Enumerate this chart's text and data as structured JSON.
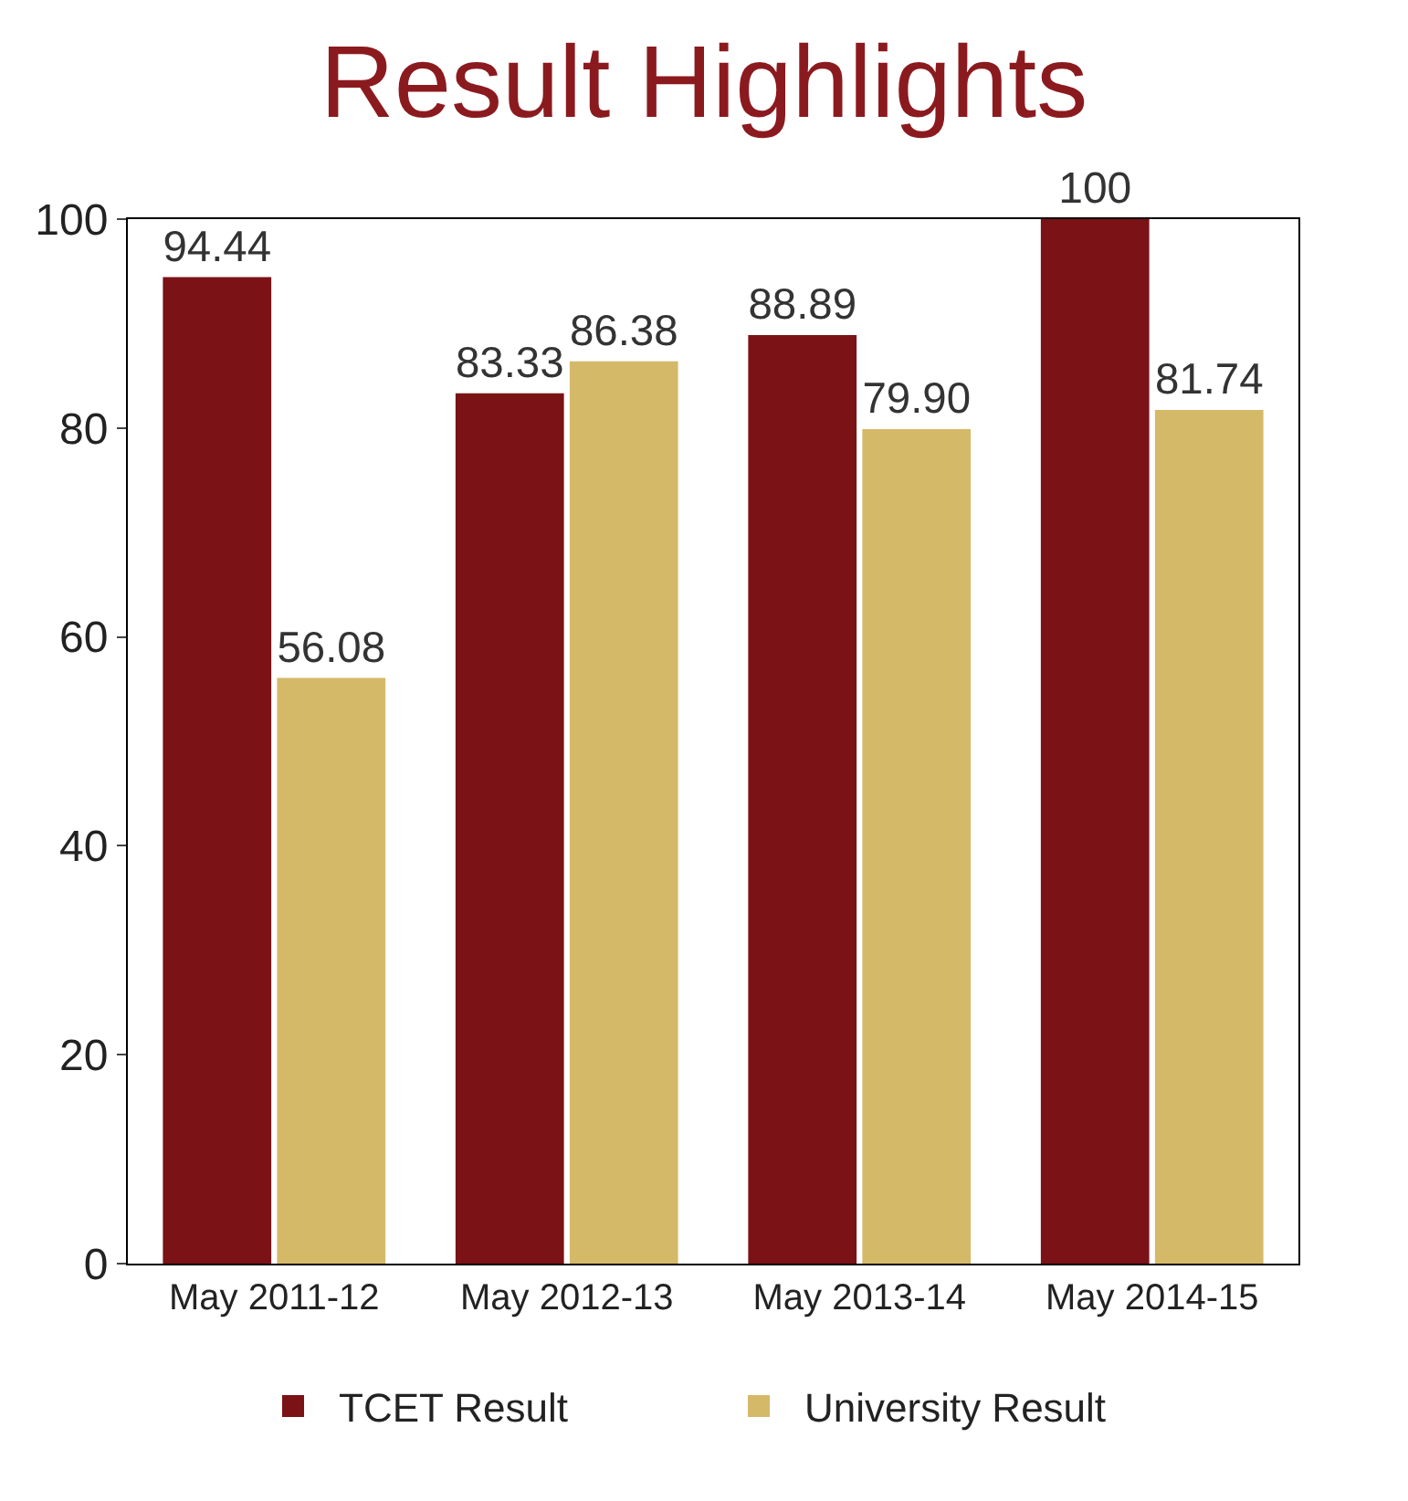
{
  "chart_data": {
    "type": "bar",
    "title": "Result Highlights",
    "categories": [
      "May 2011-12",
      "May 2012-13",
      "May 2013-14",
      "May 2014-15"
    ],
    "series": [
      {
        "name": "TCET Result",
        "color": "#7a1216",
        "values": [
          94.44,
          83.33,
          88.89,
          100
        ],
        "value_labels": [
          "94.44",
          "83.33",
          "88.89",
          "100"
        ]
      },
      {
        "name": "University Result",
        "color": "#d4b968",
        "values": [
          56.08,
          86.38,
          79.9,
          81.74
        ],
        "value_labels": [
          "56.08",
          "86.38",
          "79.90",
          "81.74"
        ]
      }
    ],
    "ylim": [
      0,
      100
    ],
    "yticks": [
      0,
      20,
      40,
      60,
      80,
      100
    ],
    "legend": "bottom"
  }
}
